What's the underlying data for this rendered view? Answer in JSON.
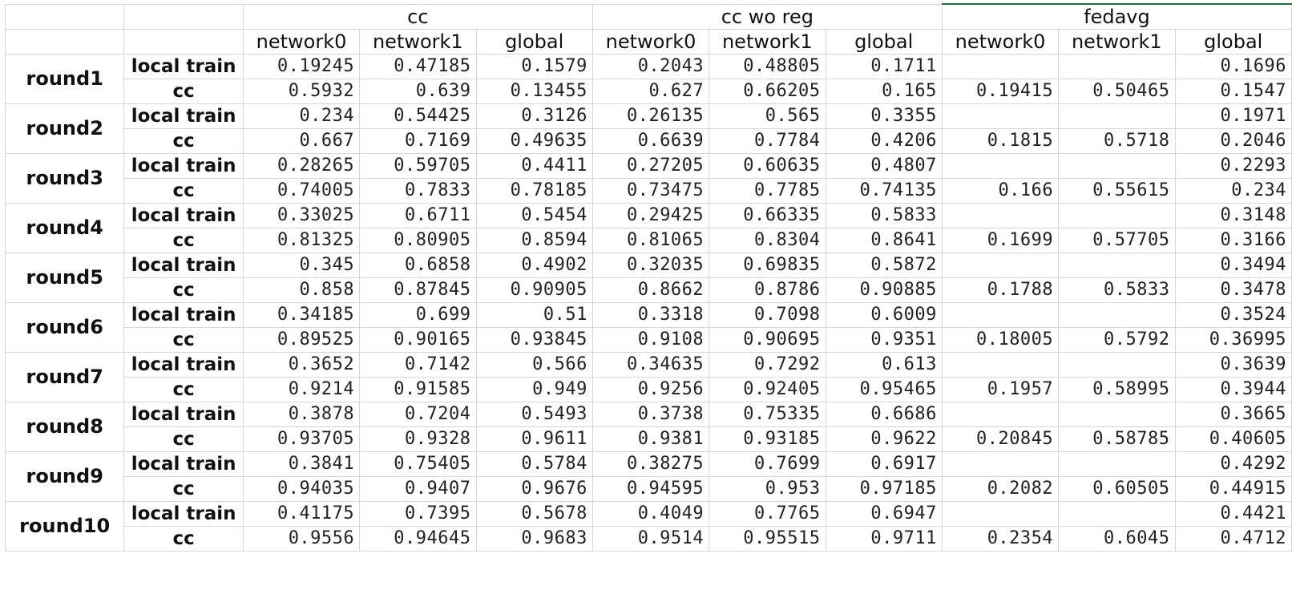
{
  "header": {
    "groups": [
      "cc",
      "cc wo reg",
      "fedavg"
    ],
    "columns": [
      "network0",
      "network1",
      "global",
      "network0",
      "network1",
      "global",
      "network0",
      "network1",
      "global"
    ]
  },
  "rows": [
    {
      "round": "round1",
      "lines": [
        {
          "type": "local train",
          "values": [
            "0.19245",
            "0.47185",
            "0.1579",
            "0.2043",
            "0.48805",
            "0.1711",
            "",
            "",
            "0.1696"
          ]
        },
        {
          "type": "cc",
          "values": [
            "0.5932",
            "0.639",
            "0.13455",
            "0.627",
            "0.66205",
            "0.165",
            "0.19415",
            "0.50465",
            "0.1547"
          ]
        }
      ]
    },
    {
      "round": "round2",
      "lines": [
        {
          "type": "local train",
          "values": [
            "0.234",
            "0.54425",
            "0.3126",
            "0.26135",
            "0.565",
            "0.3355",
            "",
            "",
            "0.1971"
          ]
        },
        {
          "type": "cc",
          "values": [
            "0.667",
            "0.7169",
            "0.49635",
            "0.6639",
            "0.7784",
            "0.4206",
            "0.1815",
            "0.5718",
            "0.2046"
          ]
        }
      ]
    },
    {
      "round": "round3",
      "lines": [
        {
          "type": "local train",
          "values": [
            "0.28265",
            "0.59705",
            "0.4411",
            "0.27205",
            "0.60635",
            "0.4807",
            "",
            "",
            "0.2293"
          ]
        },
        {
          "type": "cc",
          "values": [
            "0.74005",
            "0.7833",
            "0.78185",
            "0.73475",
            "0.7785",
            "0.74135",
            "0.166",
            "0.55615",
            "0.234"
          ]
        }
      ]
    },
    {
      "round": "round4",
      "lines": [
        {
          "type": "local train",
          "values": [
            "0.33025",
            "0.6711",
            "0.5454",
            "0.29425",
            "0.66335",
            "0.5833",
            "",
            "",
            "0.3148"
          ]
        },
        {
          "type": "cc",
          "values": [
            "0.81325",
            "0.80905",
            "0.8594",
            "0.81065",
            "0.8304",
            "0.8641",
            "0.1699",
            "0.57705",
            "0.3166"
          ]
        }
      ]
    },
    {
      "round": "round5",
      "lines": [
        {
          "type": "local train",
          "values": [
            "0.345",
            "0.6858",
            "0.4902",
            "0.32035",
            "0.69835",
            "0.5872",
            "",
            "",
            "0.3494"
          ]
        },
        {
          "type": "cc",
          "values": [
            "0.858",
            "0.87845",
            "0.90905",
            "0.8662",
            "0.8786",
            "0.90885",
            "0.1788",
            "0.5833",
            "0.3478"
          ]
        }
      ]
    },
    {
      "round": "round6",
      "lines": [
        {
          "type": "local train",
          "values": [
            "0.34185",
            "0.699",
            "0.51",
            "0.3318",
            "0.7098",
            "0.6009",
            "",
            "",
            "0.3524"
          ]
        },
        {
          "type": "cc",
          "values": [
            "0.89525",
            "0.90165",
            "0.93845",
            "0.9108",
            "0.90695",
            "0.9351",
            "0.18005",
            "0.5792",
            "0.36995"
          ]
        }
      ]
    },
    {
      "round": "round7",
      "lines": [
        {
          "type": "local train",
          "values": [
            "0.3652",
            "0.7142",
            "0.566",
            "0.34635",
            "0.7292",
            "0.613",
            "",
            "",
            "0.3639"
          ]
        },
        {
          "type": "cc",
          "values": [
            "0.9214",
            "0.91585",
            "0.949",
            "0.9256",
            "0.92405",
            "0.95465",
            "0.1957",
            "0.58995",
            "0.3944"
          ]
        }
      ]
    },
    {
      "round": "round8",
      "lines": [
        {
          "type": "local train",
          "values": [
            "0.3878",
            "0.7204",
            "0.5493",
            "0.3738",
            "0.75335",
            "0.6686",
            "",
            "",
            "0.3665"
          ]
        },
        {
          "type": "cc",
          "values": [
            "0.93705",
            "0.9328",
            "0.9611",
            "0.9381",
            "0.93185",
            "0.9622",
            "0.20845",
            "0.58785",
            "0.40605"
          ]
        }
      ]
    },
    {
      "round": "round9",
      "lines": [
        {
          "type": "local train",
          "values": [
            "0.3841",
            "0.75405",
            "0.5784",
            "0.38275",
            "0.7699",
            "0.6917",
            "",
            "",
            "0.4292"
          ]
        },
        {
          "type": "cc",
          "values": [
            "0.94035",
            "0.9407",
            "0.9676",
            "0.94595",
            "0.953",
            "0.97185",
            "0.2082",
            "0.60505",
            "0.44915"
          ]
        }
      ]
    },
    {
      "round": "round10",
      "lines": [
        {
          "type": "local train",
          "values": [
            "0.41175",
            "0.7395",
            "0.5678",
            "0.4049",
            "0.7765",
            "0.6947",
            "",
            "",
            "0.4421"
          ]
        },
        {
          "type": "cc",
          "values": [
            "0.9556",
            "0.94645",
            "0.9683",
            "0.9514",
            "0.95515",
            "0.9711",
            "0.2354",
            "0.6045",
            "0.4712"
          ]
        }
      ]
    }
  ]
}
